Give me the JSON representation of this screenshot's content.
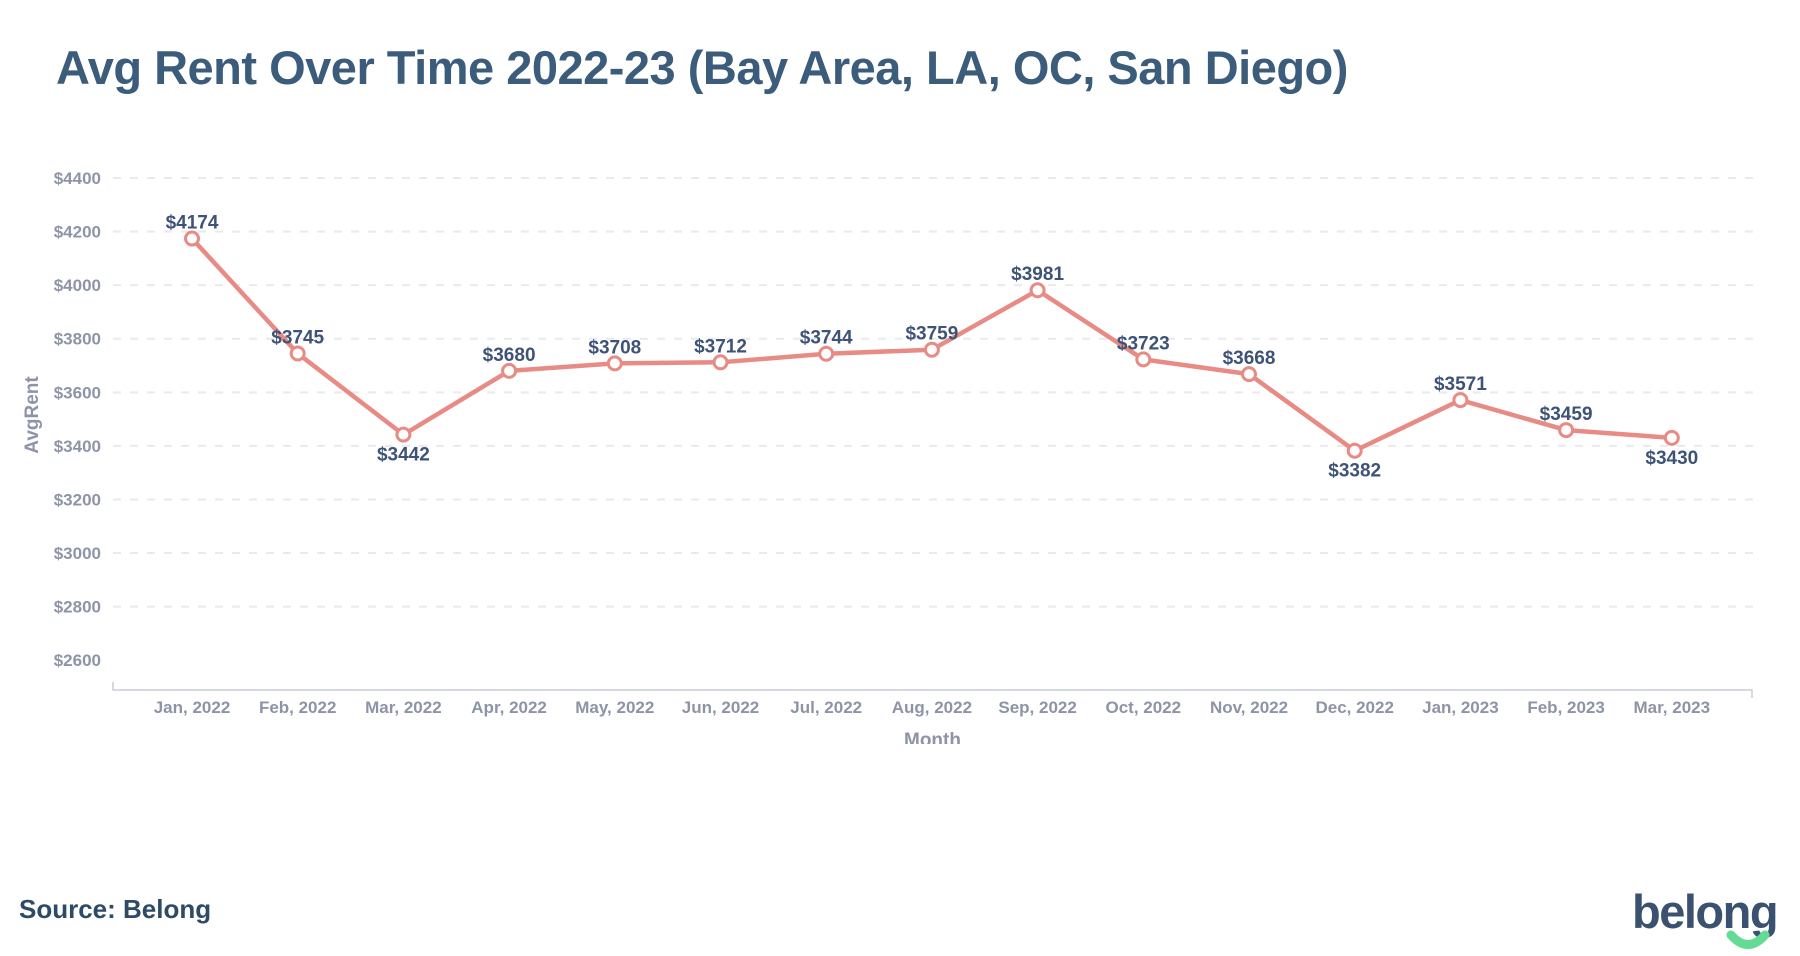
{
  "title": "Avg Rent Over Time 2022-23 (Bay Area, LA, OC, San Diego)",
  "source": "Source: Belong",
  "brand": {
    "logo_text": "belong"
  },
  "chart_data": {
    "type": "line",
    "title": "Avg Rent Over Time 2022-23 (Bay Area, LA, OC, San Diego)",
    "xlabel": "Month",
    "ylabel": "AvgRent",
    "x": [
      "Jan, 2022",
      "Feb, 2022",
      "Mar, 2022",
      "Apr, 2022",
      "May, 2022",
      "Jun, 2022",
      "Jul, 2022",
      "Aug, 2022",
      "Sep, 2022",
      "Oct, 2022",
      "Nov, 2022",
      "Dec, 2022",
      "Jan, 2023",
      "Feb, 2023",
      "Mar, 2023"
    ],
    "series": [
      {
        "name": "AvgRent",
        "values": [
          4174,
          3745,
          3442,
          3680,
          3708,
          3712,
          3744,
          3759,
          3981,
          3723,
          3668,
          3382,
          3571,
          3459,
          3430
        ]
      }
    ],
    "point_labels": [
      "$4174",
      "$3745",
      "$3442",
      "$3680",
      "$3708",
      "$3712",
      "$3744",
      "$3759",
      "$3981",
      "$3723",
      "$3668",
      "$3382",
      "$3571",
      "$3459",
      "$3430"
    ],
    "y_ticks": [
      "$4400",
      "$4200",
      "$4000",
      "$3800",
      "$3600",
      "$3400",
      "$3200",
      "$3000",
      "$2800",
      "$2600"
    ],
    "ylim": [
      2500,
      4500
    ],
    "grid": "dashed horizontal gridlines at $2800 through $4400",
    "legend": "none",
    "colors": {
      "line": "#E88B85",
      "marker_fill": "#FFFFFF",
      "point_label": "#3E5377",
      "tick_label": "#8D94A7",
      "title": "#3B5C7B",
      "grid": "#E9E9EF",
      "axis": "#C9CDD6",
      "source_text": "#2D4A67",
      "logo_navy": "#3A526F",
      "logo_green": "#63DB95"
    }
  }
}
